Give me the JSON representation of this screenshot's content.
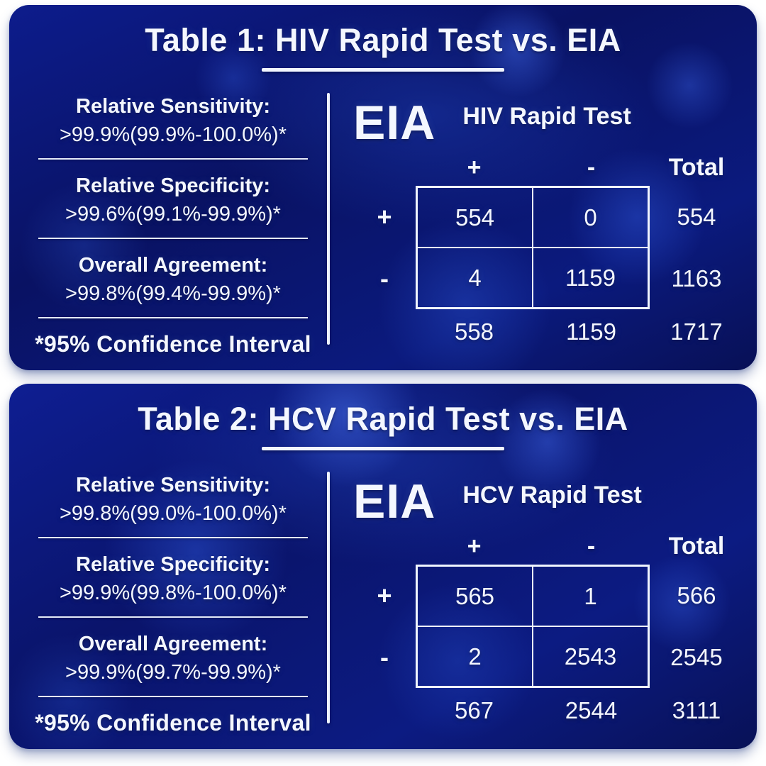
{
  "colors": {
    "page_background": "#ffffff",
    "panel_base": "#0a1576",
    "bubble_highlight": "#2c4fd0",
    "text": "#f4f7ff",
    "line": "#f0f5ff"
  },
  "chart_data": [
    {
      "type": "table",
      "title": "Table 1: HIV Rapid Test vs. EIA",
      "stats": [
        {
          "label": "Relative Sensitivity:",
          "value": ">99.9%(99.9%-100.0%)*"
        },
        {
          "label": "Relative Specificity:",
          "value": ">99.6%(99.1%-99.9%)*"
        },
        {
          "label": "Overall Agreement:",
          "value": ">99.8%(99.4%-99.9%)*"
        }
      ],
      "footnote": "*95% Confidence Interval",
      "matrix": {
        "row_axis_label": "EIA",
        "col_axis_label": "HIV Rapid Test",
        "col_headers": [
          "+",
          "-",
          "Total"
        ],
        "rows": [
          {
            "label": "+",
            "cells": [
              "554",
              "0"
            ],
            "total": "554"
          },
          {
            "label": "-",
            "cells": [
              "4",
              "1159"
            ],
            "total": "1163"
          }
        ],
        "col_totals": [
          "558",
          "1159",
          "1717"
        ]
      }
    },
    {
      "type": "table",
      "title": "Table 2: HCV Rapid Test vs. EIA",
      "stats": [
        {
          "label": "Relative Sensitivity:",
          "value": ">99.8%(99.0%-100.0%)*"
        },
        {
          "label": "Relative Specificity:",
          "value": ">99.9%(99.8%-100.0%)*"
        },
        {
          "label": "Overall Agreement:",
          "value": ">99.9%(99.7%-99.9%)*"
        }
      ],
      "footnote": "*95% Confidence Interval",
      "matrix": {
        "row_axis_label": "EIA",
        "col_axis_label": "HCV Rapid Test",
        "col_headers": [
          "+",
          "-",
          "Total"
        ],
        "rows": [
          {
            "label": "+",
            "cells": [
              "565",
              "1"
            ],
            "total": "566"
          },
          {
            "label": "-",
            "cells": [
              "2",
              "2543"
            ],
            "total": "2545"
          }
        ],
        "col_totals": [
          "567",
          "2544",
          "3111"
        ]
      }
    }
  ]
}
